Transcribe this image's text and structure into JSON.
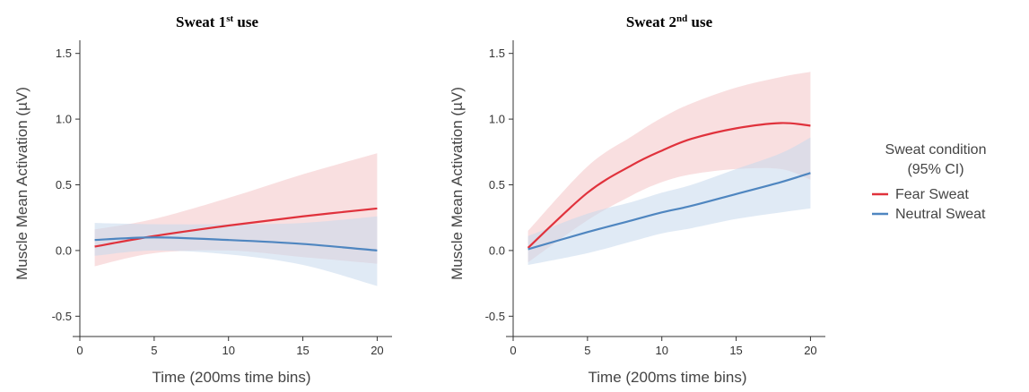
{
  "chart_data": [
    {
      "type": "line",
      "title_main": "Sweat 1",
      "title_sup": "st",
      "title_rest": " use",
      "xlabel": "Time (200ms time bins)",
      "ylabel": "Muscle Mean Activation (µV)",
      "xlim": [
        0,
        21
      ],
      "ylim": [
        -0.6,
        1.6
      ],
      "xticks": [
        0,
        5,
        10,
        15,
        20
      ],
      "yticks": [
        -0.5,
        0.0,
        0.5,
        1.0,
        1.5
      ],
      "x": [
        1,
        5,
        10,
        15,
        20
      ],
      "series": [
        {
          "name": "Fear Sweat",
          "color": "#e0323c",
          "band_color": "#f4c4c7",
          "values": [
            0.03,
            0.11,
            0.19,
            0.26,
            0.32
          ],
          "lower": [
            -0.12,
            -0.02,
            0.0,
            -0.05,
            -0.1
          ],
          "upper": [
            0.16,
            0.24,
            0.4,
            0.58,
            0.74
          ]
        },
        {
          "name": "Neutral Sweat",
          "color": "#4f86c0",
          "band_color": "#c6d9ec",
          "values": [
            0.08,
            0.1,
            0.08,
            0.05,
            0.0
          ],
          "lower": [
            -0.04,
            0.0,
            -0.03,
            -0.11,
            -0.27
          ],
          "upper": [
            0.21,
            0.2,
            0.2,
            0.21,
            0.26
          ]
        }
      ]
    },
    {
      "type": "line",
      "title_main": "Sweat 2",
      "title_sup": "nd",
      "title_rest": " use",
      "xlabel": "Time (200ms time bins)",
      "ylabel": "Muscle Mean Activation (µV)",
      "xlim": [
        0,
        21
      ],
      "ylim": [
        -0.6,
        1.6
      ],
      "xticks": [
        0,
        5,
        10,
        15,
        20
      ],
      "yticks": [
        -0.5,
        0.0,
        0.5,
        1.0,
        1.5
      ],
      "x": [
        1,
        5,
        8,
        10,
        12,
        15,
        18,
        20
      ],
      "series": [
        {
          "name": "Fear Sweat",
          "color": "#e0323c",
          "band_color": "#f4c4c7",
          "values": [
            0.02,
            0.44,
            0.65,
            0.76,
            0.85,
            0.93,
            0.97,
            0.95
          ],
          "lower": [
            -0.09,
            0.23,
            0.42,
            0.52,
            0.58,
            0.62,
            0.62,
            0.54
          ],
          "upper": [
            0.15,
            0.64,
            0.87,
            1.01,
            1.12,
            1.24,
            1.32,
            1.36
          ]
        },
        {
          "name": "Neutral Sweat",
          "color": "#4f86c0",
          "band_color": "#c6d9ec",
          "values": [
            0.01,
            0.14,
            0.23,
            0.29,
            0.34,
            0.43,
            0.52,
            0.59
          ],
          "lower": [
            -0.11,
            -0.02,
            0.07,
            0.13,
            0.17,
            0.24,
            0.29,
            0.32
          ],
          "upper": [
            0.11,
            0.28,
            0.37,
            0.44,
            0.5,
            0.62,
            0.74,
            0.86
          ]
        }
      ]
    }
  ],
  "legend": {
    "title_line1": "Sweat condition",
    "title_line2": "(95% CI)",
    "placement": "right",
    "items": [
      {
        "label": "Fear Sweat",
        "color": "#e0323c"
      },
      {
        "label": "Neutral Sweat",
        "color": "#4f86c0"
      }
    ]
  }
}
